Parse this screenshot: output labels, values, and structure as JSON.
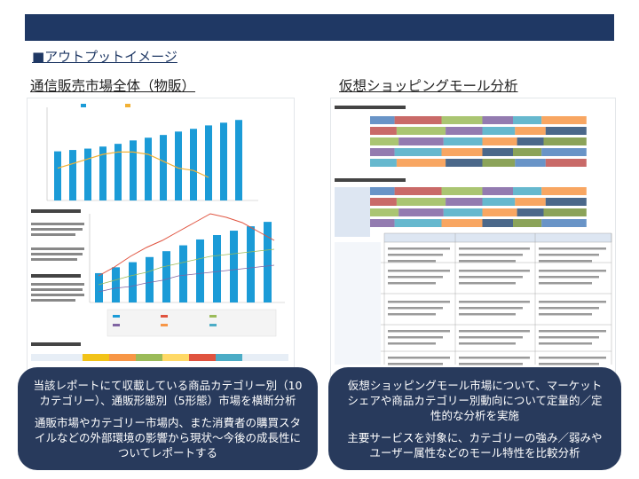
{
  "header": {
    "section_title": "■アウトプットイメージ"
  },
  "left_panel": {
    "title": "通信販売市場全体（物販）",
    "chart_bars": [
      72,
      74,
      76,
      79,
      83,
      88,
      92,
      96,
      101,
      105,
      110,
      114,
      118
    ],
    "chart_line": [
      104,
      106,
      108,
      110,
      111,
      111,
      110,
      107,
      104,
      103,
      100
    ],
    "lower_bars": [
      40,
      48,
      55,
      62,
      70,
      78,
      86,
      92,
      98,
      104,
      110
    ],
    "callout": {
      "line1": "当該レポートにて収載している商品カテゴリー別（10カテゴリー）、通販形態別（5形態）市場を横断分析",
      "line2": "通販市場やカテゴリー市場内、また消費者の購買スタイルなどの外部環境の影響から現状～今後の成長性についてレポートする"
    }
  },
  "right_panel": {
    "title": "仮想ショッピングモール分析",
    "colors": [
      "#4f81bd",
      "#c0504d",
      "#9bbb59",
      "#8064a2",
      "#4bacc6",
      "#f79646",
      "#2c4d75",
      "#77933c"
    ],
    "callout": {
      "line1": "仮想ショッピングモール市場について、マーケットシェアや商品カテゴリー別動向について定量的／定性的な分析を実施",
      "line2": "主要サービスを対象に、カテゴリーの強み／弱みやユーザー属性などのモール特性を比較分析"
    }
  },
  "colors": {
    "header_bar": "#1f3864",
    "callout_bg": "#283a5c",
    "bar_blue": "#1b9bd7"
  }
}
